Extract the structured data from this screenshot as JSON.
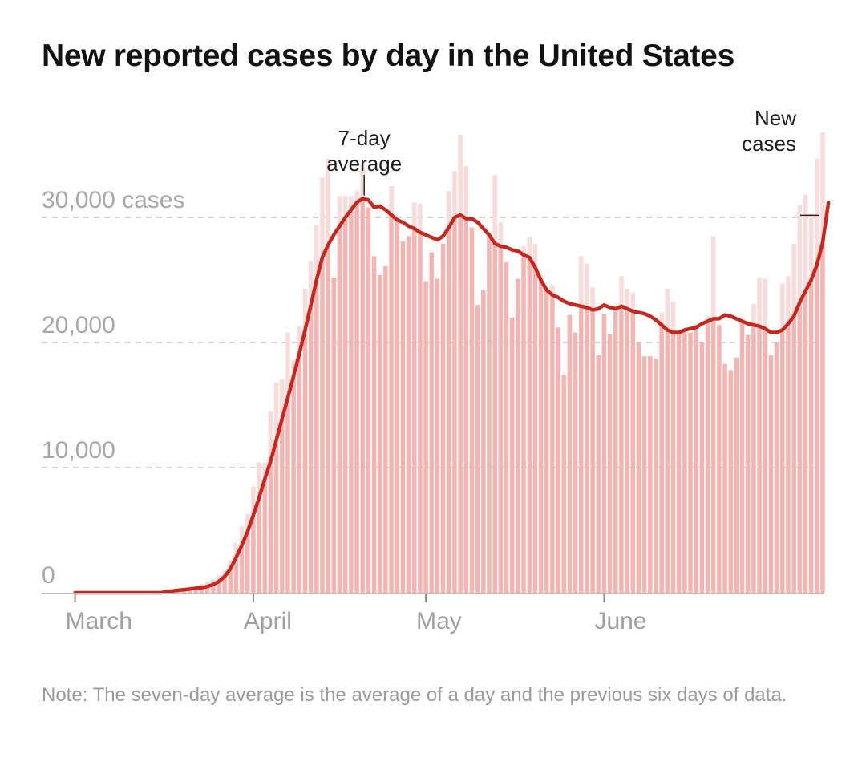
{
  "title": "New reported cases by day in the United States",
  "note": "Note: The seven-day average is the average of a day and the previous six days of data.",
  "colors": {
    "bar": "#f2b5b3",
    "bar_excess": "#f8dcdb",
    "line": "#c4281f",
    "grid": "#d4d4d4",
    "axis": "#bbbbbb"
  },
  "chart_data": {
    "type": "bar",
    "title": "New reported cases by day in the United States",
    "xlabel": "",
    "ylabel": "",
    "ylim": [
      0,
      36000
    ],
    "yticks": [
      {
        "value": 0,
        "label": "0"
      },
      {
        "value": 10000,
        "label": "10,000"
      },
      {
        "value": 20000,
        "label": "20,000"
      },
      {
        "value": 30000,
        "label": "30,000 cases"
      }
    ],
    "xticks": [
      {
        "day": 0,
        "label": "March"
      },
      {
        "day": 31,
        "label": "April"
      },
      {
        "day": 61,
        "label": "May"
      },
      {
        "day": 92,
        "label": "June"
      }
    ],
    "start_date": "Mar 1",
    "series": [
      {
        "name": "New cases",
        "type": "bar",
        "values": [
          0,
          0,
          0,
          0,
          0,
          0,
          0,
          0,
          0,
          0,
          0,
          0,
          0,
          0,
          0,
          0,
          100,
          200,
          300,
          400,
          500,
          600,
          700,
          900,
          1100,
          1400,
          1800,
          2600,
          4000,
          5300,
          6300,
          8500,
          10400,
          10400,
          14500,
          16800,
          17100,
          20800,
          18600,
          21300,
          24300,
          26500,
          29400,
          33200,
          34700,
          25200,
          31700,
          31700,
          31700,
          32100,
          34200,
          30800,
          26900,
          25400,
          26100,
          32500,
          30100,
          28100,
          28500,
          31200,
          31100,
          24900,
          27200,
          25100,
          27900,
          32100,
          33700,
          36600,
          34100,
          29200,
          23000,
          24200,
          28700,
          33400,
          29600,
          26400,
          22000,
          25100,
          27700,
          28400,
          27900,
          25400,
          24400,
          24600,
          21200,
          17400,
          22200,
          20800,
          26900,
          26300,
          24400,
          19000,
          22300,
          20700,
          22600,
          25300,
          24300,
          24000,
          20000,
          18900,
          18900,
          18700,
          22400,
          24300,
          23300,
          20800,
          20900,
          20800,
          21500,
          20000,
          22100,
          28500,
          21400,
          18300,
          17800,
          18800,
          21700,
          20600,
          23100,
          25200,
          25100,
          19000,
          20000,
          24700,
          25300,
          27900,
          31000,
          31800,
          30300,
          34700,
          36800
        ]
      },
      {
        "name": "7-day average",
        "type": "line",
        "values": [
          0,
          0,
          0,
          0,
          0,
          0,
          0,
          0,
          0,
          0,
          0,
          0,
          0,
          0,
          0,
          0,
          100,
          150,
          200,
          250,
          300,
          350,
          400,
          500,
          650,
          900,
          1300,
          1900,
          2800,
          3800,
          4900,
          6200,
          7600,
          9100,
          10500,
          12200,
          13900,
          15600,
          17300,
          19100,
          21000,
          23000,
          25000,
          26800,
          27800,
          28600,
          29300,
          30000,
          30600,
          31200,
          31500,
          31400,
          30800,
          30900,
          30600,
          30200,
          29800,
          29600,
          29300,
          29100,
          28800,
          28600,
          28400,
          28200,
          28500,
          29200,
          30000,
          30200,
          29900,
          29900,
          29600,
          29100,
          28600,
          27900,
          27700,
          27600,
          27400,
          27300,
          27000,
          26800,
          26000,
          25000,
          24200,
          23800,
          23600,
          23300,
          23100,
          23000,
          22900,
          22800,
          22600,
          22700,
          23000,
          22800,
          22700,
          22900,
          22700,
          22500,
          22400,
          22300,
          22100,
          21800,
          21400,
          21000,
          20800,
          20800,
          21000,
          21100,
          21200,
          21500,
          21700,
          21900,
          21900,
          22200,
          22100,
          21900,
          21700,
          21500,
          21400,
          21300,
          21100,
          20800,
          20800,
          21000,
          21500,
          22100,
          23200,
          24100,
          25000,
          26200,
          28000,
          31200
        ]
      }
    ],
    "annotations": [
      {
        "label_lines": [
          "7-day",
          "average"
        ],
        "target": "7-day average",
        "day": 50
      },
      {
        "label_lines": [
          "New",
          "cases"
        ],
        "target": "New cases",
        "day": 128
      }
    ]
  }
}
